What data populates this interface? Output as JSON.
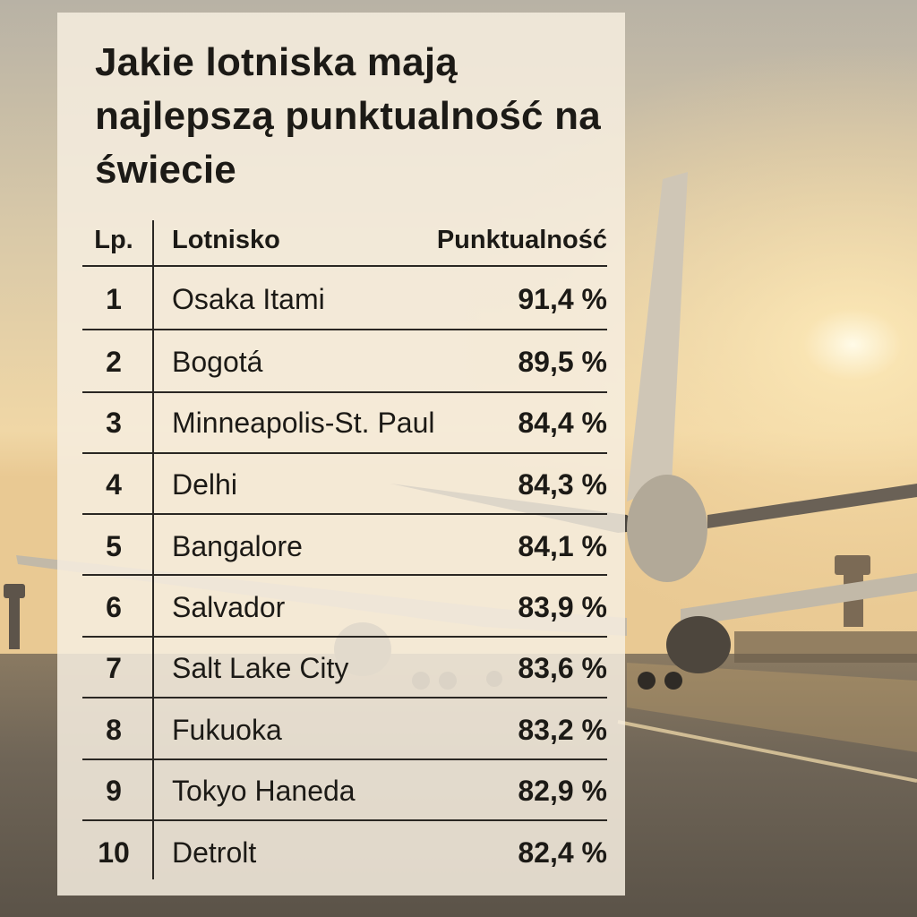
{
  "title": "Jakie lotniska mają najlepszą punktualność na świecie",
  "headers": {
    "lp": "Lp.",
    "airport": "Lotnisko",
    "punctuality": "Punktualność"
  },
  "rows": [
    {
      "lp": "1",
      "airport": "Osaka Itami",
      "punctuality": "91,4 %"
    },
    {
      "lp": "2",
      "airport": "Bogotá",
      "punctuality": "89,5 %"
    },
    {
      "lp": "3",
      "airport": "Minneapolis-St. Paul",
      "punctuality": "84,4 %"
    },
    {
      "lp": "4",
      "airport": "Delhi",
      "punctuality": "84,3 %"
    },
    {
      "lp": "5",
      "airport": "Bangalore",
      "punctuality": "84,1 %"
    },
    {
      "lp": "6",
      "airport": "Salvador",
      "punctuality": "83,9 %"
    },
    {
      "lp": "7",
      "airport": "Salt Lake City",
      "punctuality": "83,6 %"
    },
    {
      "lp": "8",
      "airport": "Fukuoka",
      "punctuality": "83,2 %"
    },
    {
      "lp": "9",
      "airport": "Tokyo Haneda",
      "punctuality": "82,9 %"
    },
    {
      "lp": "10",
      "airport": "Detrolt",
      "punctuality": "82,4 %"
    }
  ],
  "colors": {
    "sky_top": "#b9b3a6",
    "sun": "#fff6d8",
    "tarmac": "#6e665a",
    "panel": "#f6eee0",
    "text": "#1c1a16"
  }
}
